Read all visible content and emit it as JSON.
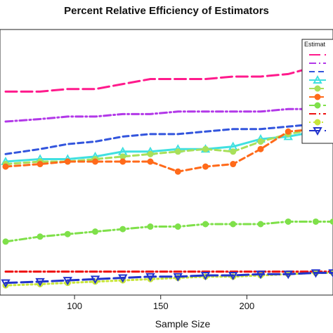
{
  "chart_data": {
    "type": "line",
    "title": "Percent Relative Efficiency of Estimators",
    "xlabel": "Sample Size",
    "ylabel": "",
    "xlim": [
      60,
      250
    ],
    "ylim": [
      0,
      100
    ],
    "x_ticks": [
      100,
      150,
      200
    ],
    "grid": false,
    "legend": {
      "placement": "top-right",
      "title": "Estimat",
      "partially_cropped": true
    },
    "x": [
      60,
      80,
      96,
      112,
      128,
      144,
      160,
      176,
      192,
      208,
      224,
      240,
      250
    ],
    "series": [
      {
        "color": "#ff1a8c",
        "style": "longdash",
        "marker": "none",
        "values": [
          78,
          78,
          79,
          79,
          81,
          83,
          83,
          83,
          84,
          84,
          85,
          88,
          88
        ]
      },
      {
        "color": "#b238e8",
        "style": "dashdot",
        "marker": "none",
        "values": [
          66,
          67,
          68,
          68,
          69,
          69,
          70,
          70,
          70,
          70,
          71,
          71,
          71
        ]
      },
      {
        "color": "#3355dd",
        "style": "dashed",
        "marker": "none",
        "values": [
          53,
          55,
          57,
          58,
          60,
          61,
          61,
          62,
          63,
          63,
          64,
          65,
          66
        ]
      },
      {
        "color": "#40e0e0",
        "style": "solid",
        "marker": "triangle-up",
        "values": [
          50,
          51,
          51,
          52,
          54,
          54,
          55,
          55,
          56,
          59,
          60,
          62,
          62
        ]
      },
      {
        "color": "#a8e05a",
        "style": "dashed",
        "marker": "circle",
        "values": [
          49,
          50,
          50,
          51,
          52,
          53,
          54,
          55,
          54,
          58,
          61,
          63,
          63
        ]
      },
      {
        "color": "#ff6a1a",
        "style": "dashed",
        "marker": "circle",
        "values": [
          48,
          49,
          50,
          50,
          50,
          50,
          46,
          48,
          49,
          55,
          62,
          63,
          63
        ]
      },
      {
        "color": "#7fe04a",
        "style": "dashdot",
        "marker": "circle",
        "values": [
          18,
          20,
          21,
          22,
          23,
          24,
          24,
          25,
          25,
          25,
          26,
          26,
          26
        ]
      },
      {
        "color": "#ee1111",
        "style": "dashdot",
        "marker": "none",
        "values": [
          6,
          6,
          6,
          6,
          6,
          6,
          6,
          6,
          6,
          6,
          6,
          6,
          6
        ]
      },
      {
        "color": "#c8e63a",
        "style": "dotted",
        "marker": "circle",
        "values": [
          0.5,
          1,
          1.5,
          2,
          2.5,
          3,
          3.5,
          4,
          4,
          4.5,
          5,
          5.5,
          5.5
        ]
      },
      {
        "color": "#2233cc",
        "style": "longdash",
        "marker": "triangle-down",
        "values": [
          1.5,
          2,
          2.5,
          3,
          3.5,
          4,
          4,
          4.5,
          4.5,
          5,
          5,
          5.5,
          5.5
        ]
      }
    ]
  }
}
